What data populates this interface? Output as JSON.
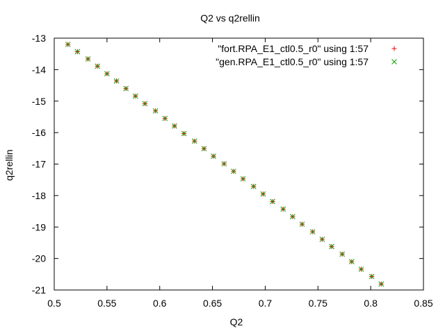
{
  "chart_data": {
    "type": "scatter",
    "title": "Q2 vs q2rellin",
    "xlabel": "Q2",
    "ylabel": "q2rellin",
    "xlim": [
      0.5,
      0.85
    ],
    "ylim": [
      -21,
      -13
    ],
    "xticks": [
      "0.5",
      "0.55",
      "0.6",
      "0.65",
      "0.7",
      "0.75",
      "0.8",
      "0.85"
    ],
    "yticks": [
      "-13",
      "-14",
      "-15",
      "-16",
      "-17",
      "-18",
      "-19",
      "-20",
      "-21"
    ],
    "grid": false,
    "legend": "top-right",
    "series": [
      {
        "name": "\"fort.RPA_E1_ctl0.5_r0\" using 1:57",
        "marker": "+",
        "color": "#ff0000",
        "x": [
          0.513,
          0.522,
          0.532,
          0.541,
          0.55,
          0.559,
          0.568,
          0.577,
          0.586,
          0.596,
          0.605,
          0.614,
          0.623,
          0.633,
          0.642,
          0.651,
          0.661,
          0.67,
          0.679,
          0.689,
          0.698,
          0.707,
          0.717,
          0.726,
          0.735,
          0.745,
          0.754,
          0.763,
          0.773,
          0.782,
          0.791,
          0.801,
          0.81
        ],
        "y": [
          -13.2,
          -13.43,
          -13.66,
          -13.89,
          -14.13,
          -14.36,
          -14.6,
          -14.84,
          -15.08,
          -15.31,
          -15.55,
          -15.79,
          -16.03,
          -16.27,
          -16.51,
          -16.75,
          -16.99,
          -17.23,
          -17.47,
          -17.71,
          -17.95,
          -18.19,
          -18.43,
          -18.67,
          -18.91,
          -19.15,
          -19.39,
          -19.62,
          -19.86,
          -20.1,
          -20.34,
          -20.57,
          -20.81
        ]
      },
      {
        "name": "\"gen.RPA_E1_ctl0.5_r0\" using 1:57",
        "marker": "x",
        "color": "#00a000",
        "x": [
          0.513,
          0.522,
          0.532,
          0.541,
          0.55,
          0.559,
          0.568,
          0.577,
          0.586,
          0.596,
          0.605,
          0.614,
          0.623,
          0.633,
          0.642,
          0.651,
          0.661,
          0.67,
          0.679,
          0.689,
          0.698,
          0.707,
          0.717,
          0.726,
          0.735,
          0.745,
          0.754,
          0.763,
          0.773,
          0.782,
          0.791,
          0.801,
          0.81
        ],
        "y": [
          -13.2,
          -13.43,
          -13.66,
          -13.89,
          -14.13,
          -14.36,
          -14.6,
          -14.84,
          -15.08,
          -15.31,
          -15.55,
          -15.79,
          -16.03,
          -16.27,
          -16.51,
          -16.75,
          -16.99,
          -17.23,
          -17.47,
          -17.71,
          -17.95,
          -18.19,
          -18.43,
          -18.67,
          -18.91,
          -19.15,
          -19.39,
          -19.62,
          -19.86,
          -20.1,
          -20.34,
          -20.57,
          -20.81
        ]
      }
    ]
  }
}
